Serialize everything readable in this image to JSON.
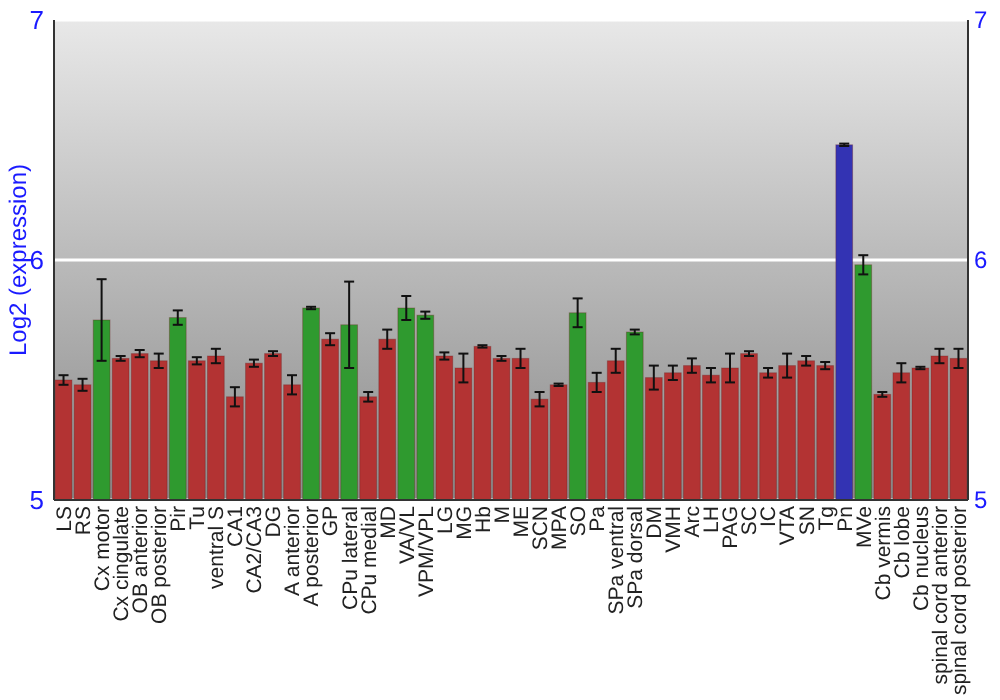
{
  "chart_data": {
    "type": "bar",
    "ylabel": "Log2 (expression)",
    "categories": [
      "LS",
      "RS",
      "Cx motor",
      "Cx cingulate",
      "OB anterior",
      "OB posterior",
      "Pir",
      "Tu",
      "ventral S",
      "CA1",
      "CA2/CA3",
      "DG",
      "A anterior",
      "A posterior",
      "GP",
      "CPu lateral",
      "CPu medial",
      "MD",
      "VA/VL",
      "VPM/VPL",
      "LG",
      "MG",
      "Hb",
      "M",
      "ME",
      "SCN",
      "MPA",
      "SO",
      "Pa",
      "SPa ventral",
      "SPa dorsal",
      "DM",
      "VMH",
      "Arc",
      "LH",
      "PAG",
      "SC",
      "IC",
      "VTA",
      "SN",
      "Tg",
      "Pn",
      "MVe",
      "Cb vermis",
      "Cb lobe",
      "Cb nucleus",
      "spinal cord anterior",
      "spinal cord posterior"
    ],
    "values": [
      5.5,
      5.48,
      5.75,
      5.59,
      5.61,
      5.58,
      5.76,
      5.58,
      5.6,
      5.43,
      5.57,
      5.61,
      5.48,
      5.8,
      5.67,
      5.73,
      5.43,
      5.67,
      5.8,
      5.77,
      5.6,
      5.55,
      5.64,
      5.59,
      5.59,
      5.42,
      5.48,
      5.78,
      5.49,
      5.58,
      5.7,
      5.51,
      5.53,
      5.56,
      5.52,
      5.55,
      5.61,
      5.53,
      5.56,
      5.58,
      5.56,
      6.48,
      5.98,
      5.44,
      5.53,
      5.55,
      5.6,
      5.59
    ],
    "errors": [
      0.02,
      0.025,
      0.17,
      0.01,
      0.015,
      0.03,
      0.03,
      0.015,
      0.03,
      0.04,
      0.015,
      0.01,
      0.04,
      0.005,
      0.025,
      0.18,
      0.02,
      0.04,
      0.05,
      0.015,
      0.015,
      0.06,
      0.005,
      0.01,
      0.04,
      0.03,
      0.005,
      0.06,
      0.04,
      0.05,
      0.01,
      0.05,
      0.03,
      0.03,
      0.03,
      0.06,
      0.01,
      0.02,
      0.05,
      0.02,
      0.015,
      0.005,
      0.04,
      0.01,
      0.04,
      0.005,
      0.03,
      0.04
    ],
    "colors": [
      "#b33333",
      "#b33333",
      "#2f9a2f",
      "#b33333",
      "#b33333",
      "#b33333",
      "#2f9a2f",
      "#b33333",
      "#b33333",
      "#b33333",
      "#b33333",
      "#b33333",
      "#b33333",
      "#2f9a2f",
      "#b33333",
      "#2f9a2f",
      "#b33333",
      "#b33333",
      "#2f9a2f",
      "#2f9a2f",
      "#b33333",
      "#b33333",
      "#b33333",
      "#b33333",
      "#b33333",
      "#b33333",
      "#b33333",
      "#2f9a2f",
      "#b33333",
      "#b33333",
      "#2f9a2f",
      "#b33333",
      "#b33333",
      "#b33333",
      "#b33333",
      "#b33333",
      "#b33333",
      "#b33333",
      "#b33333",
      "#b33333",
      "#b33333",
      "#3333b3",
      "#2f9a2f",
      "#b33333",
      "#b33333",
      "#b33333",
      "#b33333",
      "#b33333"
    ],
    "ylim": [
      5,
      7
    ],
    "yticks": [
      5,
      6,
      7
    ],
    "y2lim": [
      5,
      7
    ],
    "y2ticks": [
      5,
      6,
      7
    ],
    "grid": "y"
  }
}
